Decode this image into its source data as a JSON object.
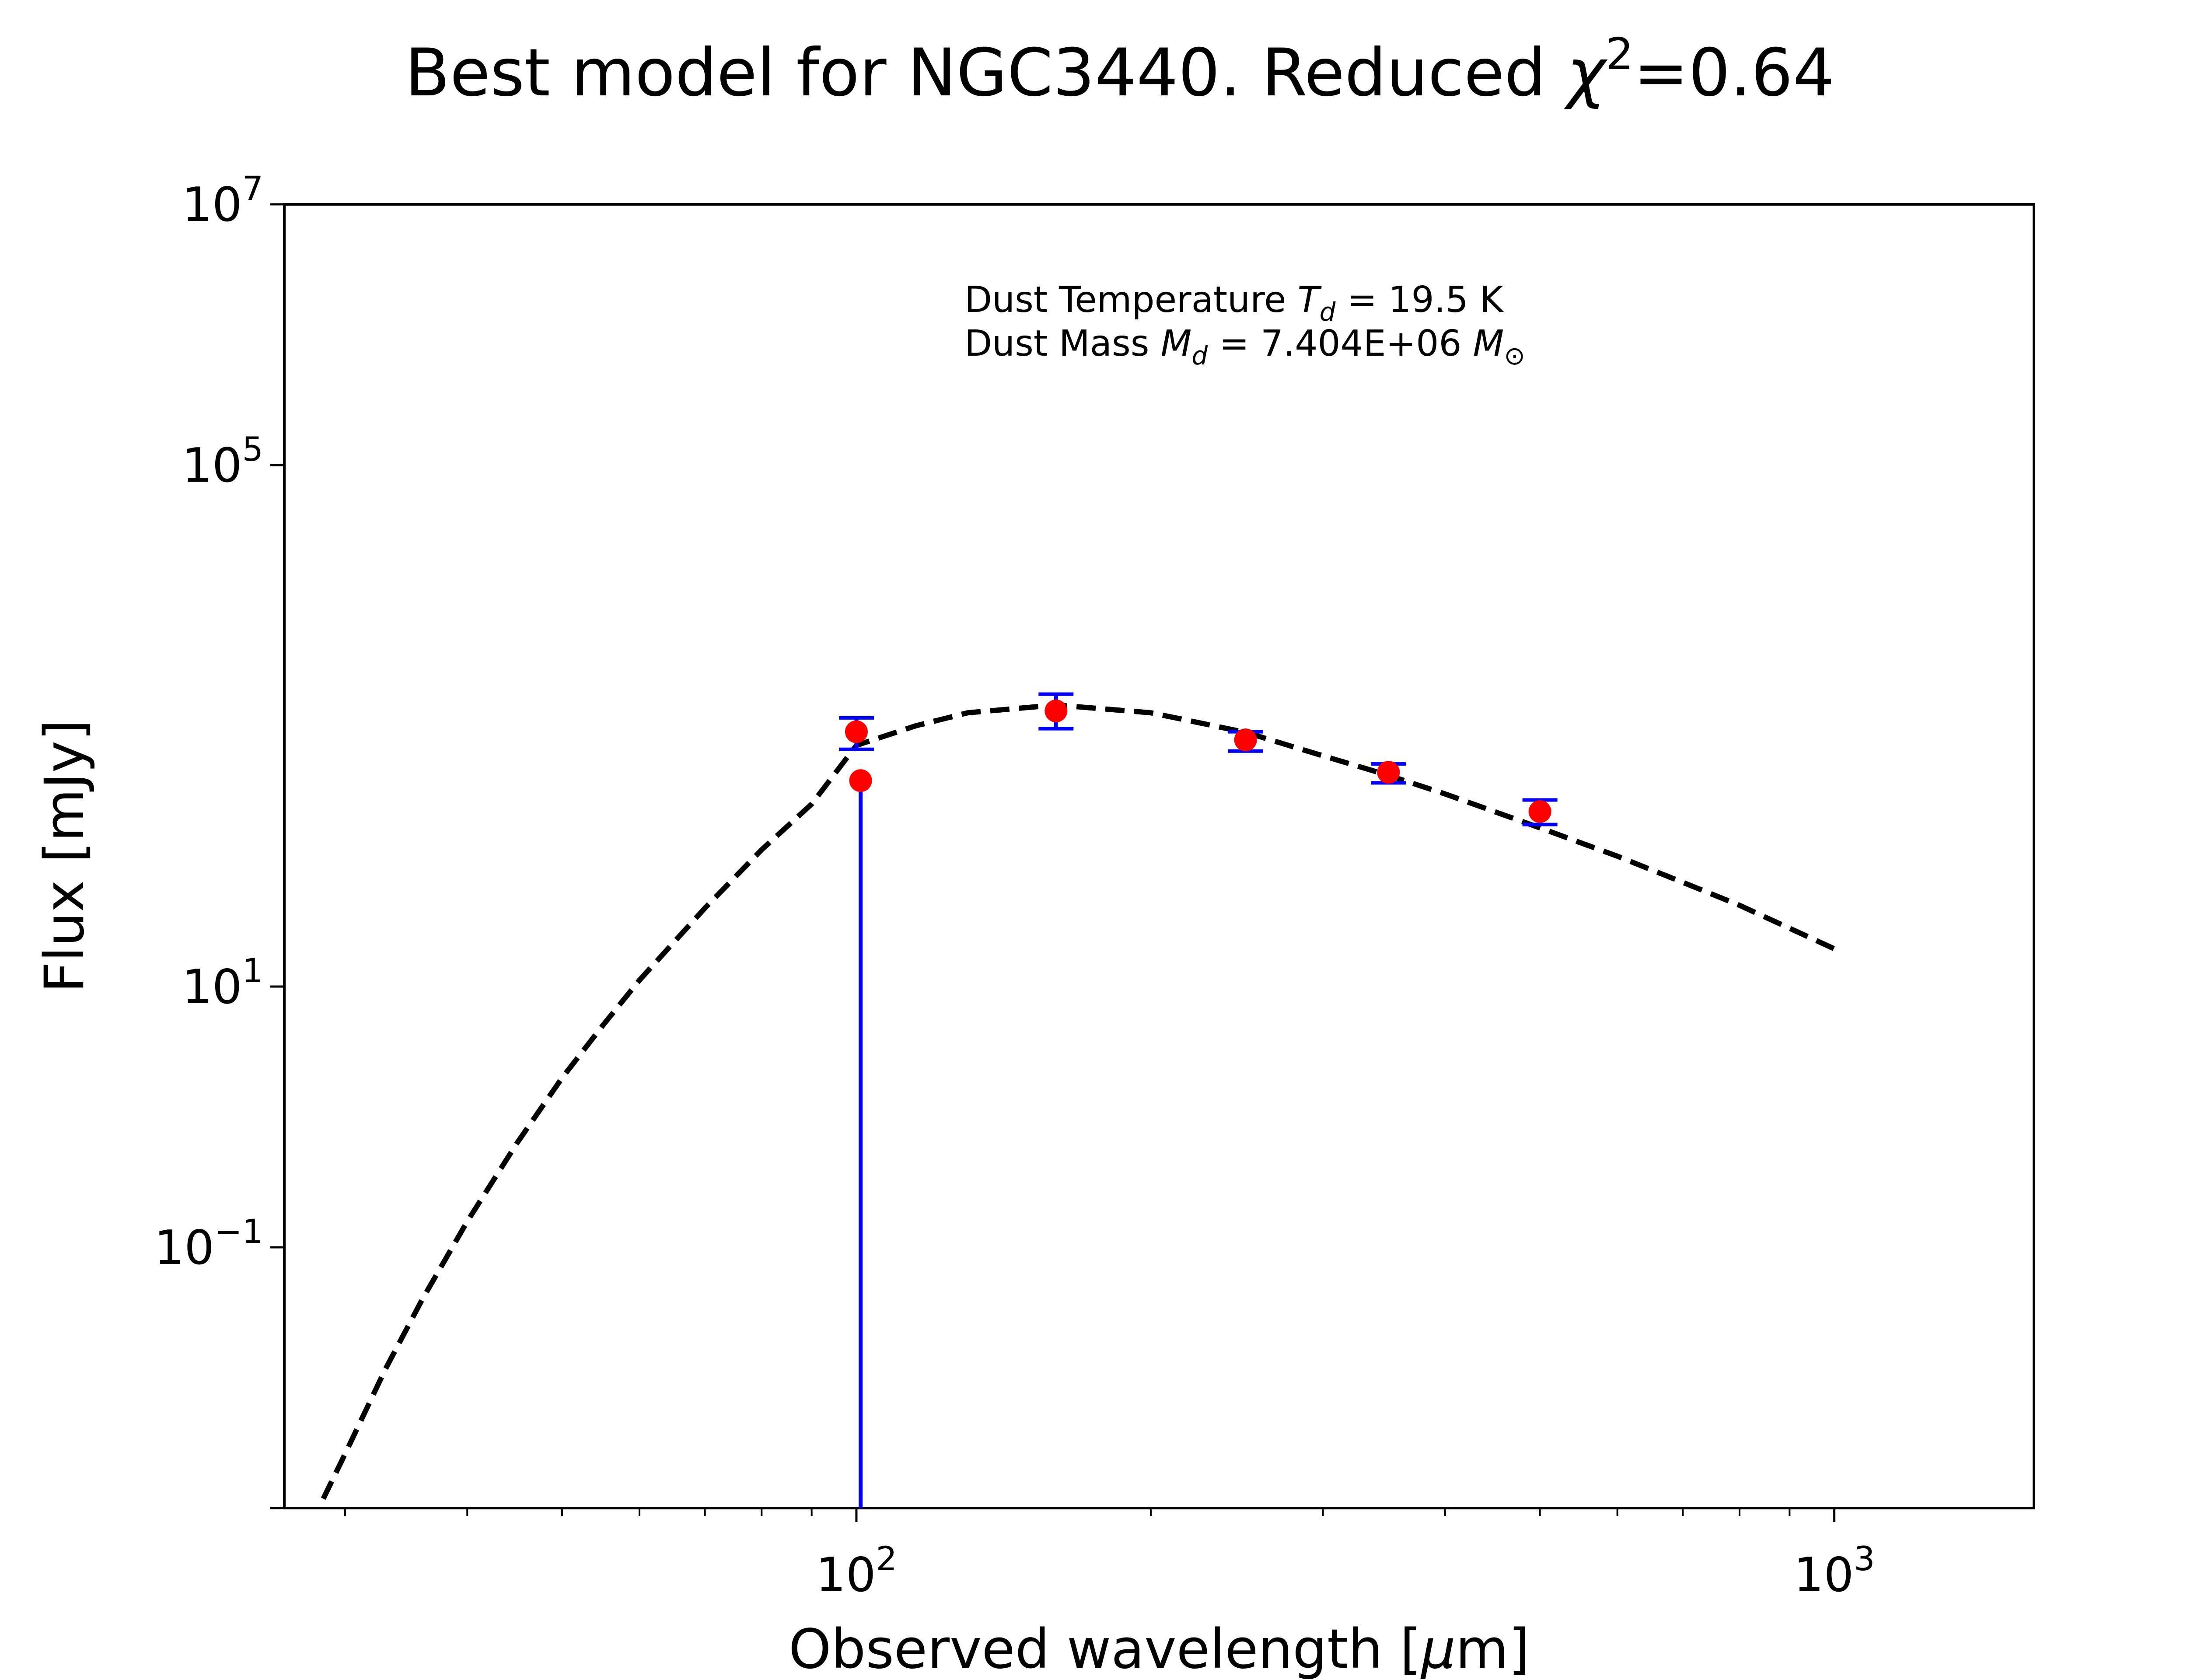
{
  "chart_data": {
    "type": "scatter",
    "title": {
      "prefix": "Best model for NGC3440. Reduced ",
      "chi_symbol": "χ",
      "chi_exponent": "2",
      "suffix": "=0.64"
    },
    "xlabel": {
      "prefix": "Observed wavelength [",
      "mu": "μ",
      "suffix": "m]"
    },
    "ylabel": "Flux [mJy]",
    "x_scale": "log",
    "y_scale": "log",
    "xlim": [
      26,
      1600
    ],
    "ylim": [
      0.001,
      10000000
    ],
    "x_ticks": [
      {
        "value": 100,
        "base": "10",
        "exp": "2"
      },
      {
        "value": 1000,
        "base": "10",
        "exp": "3"
      }
    ],
    "y_ticks": [
      {
        "value": 0.1,
        "base": "10",
        "exp": "−1"
      },
      {
        "value": 10,
        "base": "10",
        "exp": "1"
      },
      {
        "value": 100000,
        "base": "10",
        "exp": "5"
      },
      {
        "value": 10000000,
        "base": "10",
        "exp": "7"
      }
    ],
    "grid": false,
    "series": [
      {
        "type": "line",
        "style": "dashed",
        "color": "#000000",
        "x": [
          28.5,
          30,
          33,
          36,
          40,
          45,
          50,
          55,
          60,
          70,
          80,
          90,
          100,
          115,
          130,
          160,
          200,
          250,
          300,
          350,
          400,
          500,
          600,
          700,
          800,
          1000
        ],
        "y": [
          0.00118,
          0.0026,
          0.0117,
          0.0402,
          0.158,
          0.635,
          1.99,
          5.0,
          11.2,
          40,
          112,
          251,
          708,
          1000,
          1259,
          1445,
          1259,
          891,
          589,
          417,
          300,
          165,
          100,
          63,
          42,
          19.5
        ]
      },
      {
        "type": "errorbar",
        "marker": "circle",
        "marker_color": "#ff0000",
        "error_color": "#0000ff",
        "points": [
          {
            "x": 100,
            "y": 900,
            "yerr_low": 660,
            "yerr_high": 1150
          },
          {
            "x": 101,
            "y": 380,
            "yerr_low": 0.001,
            "yerr_high": 380
          },
          {
            "x": 160,
            "y": 1300,
            "yerr_low": 950,
            "yerr_high": 1750
          },
          {
            "x": 250,
            "y": 780,
            "yerr_low": 640,
            "yerr_high": 900
          },
          {
            "x": 350,
            "y": 440,
            "yerr_low": 365,
            "yerr_high": 510
          },
          {
            "x": 500,
            "y": 220,
            "yerr_low": 175,
            "yerr_high": 270
          }
        ]
      }
    ],
    "annotations": {
      "temperature": {
        "prefix": "Dust Temperature ",
        "symbol": "T",
        "subscript": "d",
        "suffix": " = 19.5 K"
      },
      "mass": {
        "prefix": "Dust Mass ",
        "symbol": "M",
        "subscript": "d",
        "middle": " = 7.404E+06 ",
        "unit_symbol": "M",
        "unit_subscript": "⊙"
      }
    }
  }
}
